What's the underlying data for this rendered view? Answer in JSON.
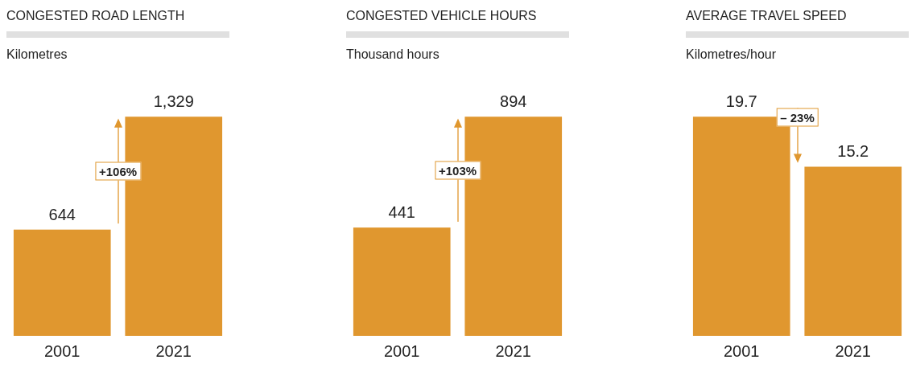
{
  "chart_data": [
    {
      "type": "bar",
      "title": "CONGESTED ROAD LENGTH",
      "subtitle": "Kilometres",
      "categories": [
        "2001",
        "2021"
      ],
      "values": [
        644,
        1329
      ],
      "value_labels": [
        "644",
        "1,329"
      ],
      "color": "#e0972f",
      "annotations": [
        "+106%"
      ],
      "grid": false,
      "legend": false,
      "tick_labels": "x"
    },
    {
      "type": "bar",
      "title": "CONGESTED VEHICLE HOURS",
      "subtitle": "Thousand hours",
      "categories": [
        "2001",
        "2021"
      ],
      "values": [
        441,
        894
      ],
      "value_labels": [
        "441",
        "894"
      ],
      "color": "#e0972f",
      "annotations": [
        "+103%"
      ],
      "grid": false,
      "legend": false,
      "tick_labels": "x"
    },
    {
      "type": "bar",
      "title": "AVERAGE TRAVEL SPEED",
      "subtitle": "Kilometres/hour",
      "categories": [
        "2001",
        "2021"
      ],
      "values": [
        19.7,
        15.2
      ],
      "value_labels": [
        "19.7",
        "15.2"
      ],
      "color": "#e0972f",
      "annotations": [
        "– 23%"
      ],
      "grid": false,
      "legend": false,
      "tick_labels": "x"
    }
  ]
}
